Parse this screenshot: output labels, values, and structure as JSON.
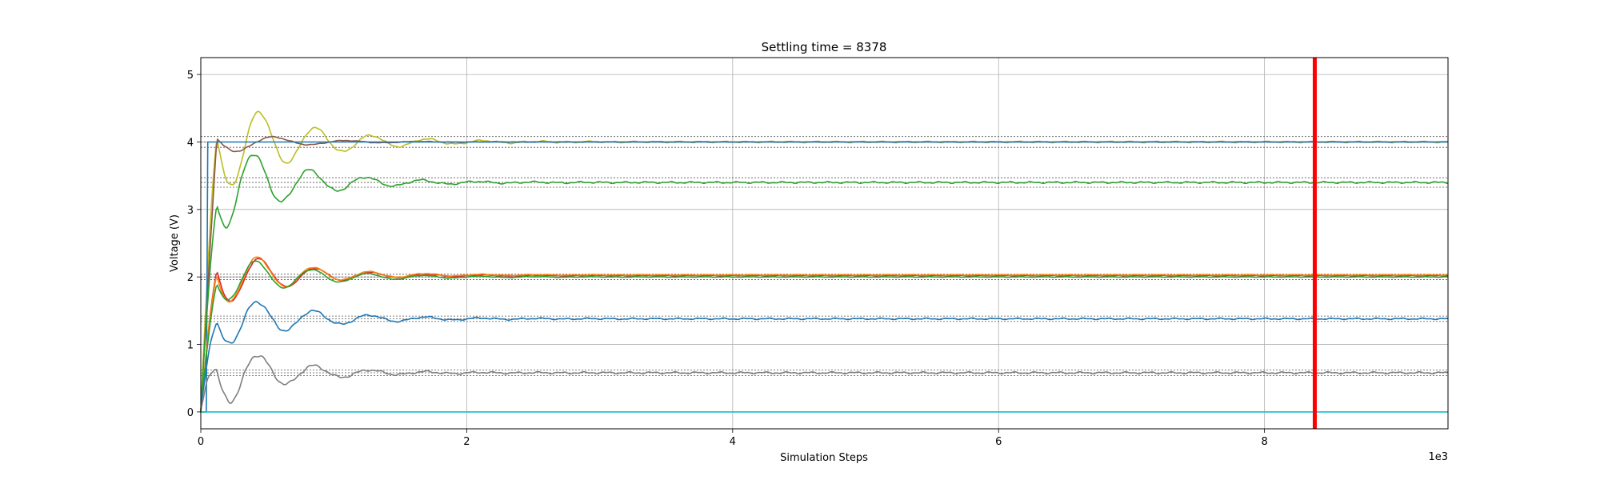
{
  "chart_data": {
    "type": "line",
    "title": "Settling time = 8378",
    "xlabel": "Simulation Steps",
    "ylabel": "Voltage (V)",
    "x_offset_label": "1e3",
    "xlim": [
      0,
      9.38
    ],
    "ylim": [
      -0.25,
      5.25
    ],
    "xticks": [
      0,
      2,
      4,
      6,
      8
    ],
    "xtick_labels": [
      "0",
      "2",
      "4",
      "6",
      "8"
    ],
    "yticks": [
      0,
      1,
      2,
      3,
      4,
      5
    ],
    "ytick_labels": [
      "0",
      "1",
      "2",
      "3",
      "4",
      "5"
    ],
    "grid": true,
    "legend": "none",
    "settling_marker": {
      "x": 8.378,
      "color": "#ff0000"
    },
    "reference_levels": [
      4.08,
      4.0,
      3.92,
      3.47,
      3.4,
      3.33,
      2.04,
      2.0,
      1.96,
      1.42,
      1.38,
      1.34,
      0.62,
      0.58,
      0.54
    ],
    "series": [
      {
        "color": "#bcbd22",
        "target": 4.0,
        "start": 0.0,
        "overshoot": 1.0,
        "period": 0.42,
        "decay": 0.55,
        "noise": 0.03,
        "phase": 0.0
      },
      {
        "color": "#8c564b",
        "target": 4.0,
        "start": 0.0,
        "overshoot": 0.25,
        "period": 0.55,
        "decay": 0.45,
        "noise": 0.012,
        "phase": 0.3
      },
      {
        "color": "#1f77b4",
        "target": 4.0,
        "start": 0.0,
        "overshoot": 0.0,
        "period": 1.0,
        "decay": 1.0,
        "noise": 0.0,
        "phase": 0.0,
        "step_at": 0.05
      },
      {
        "color": "#2ca02c",
        "target": 3.4,
        "start": 0.0,
        "overshoot": 0.95,
        "period": 0.42,
        "decay": 0.5,
        "noise": 0.035,
        "phase": 0.6
      },
      {
        "color": "#d62728",
        "target": 2.02,
        "start": 0.0,
        "overshoot": 0.6,
        "period": 0.42,
        "decay": 0.5,
        "noise": 0.012,
        "phase": 0.0
      },
      {
        "color": "#ff7f0e",
        "target": 2.03,
        "start": 0.0,
        "overshoot": 0.62,
        "period": 0.42,
        "decay": 0.5,
        "noise": 0.014,
        "phase": 0.15
      },
      {
        "color": "#2ca02c",
        "target": 2.0,
        "start": 0.0,
        "overshoot": 0.5,
        "period": 0.42,
        "decay": 0.55,
        "noise": 0.012,
        "phase": 0.35
      },
      {
        "color": "#1f77b4",
        "target": 1.38,
        "start": 0.0,
        "overshoot": 0.55,
        "period": 0.42,
        "decay": 0.55,
        "noise": 0.03,
        "phase": 0.2
      },
      {
        "color": "#7f7f7f",
        "target": 0.58,
        "start": 0.0,
        "overshoot": 0.7,
        "period": 0.42,
        "decay": 0.45,
        "noise": 0.04,
        "phase": 0.1
      },
      {
        "color": "#17becf",
        "target": 0.0,
        "start": 0.0,
        "overshoot": 0.0,
        "period": 1.0,
        "decay": 1.0,
        "noise": 0.0,
        "phase": 0.0
      }
    ]
  }
}
